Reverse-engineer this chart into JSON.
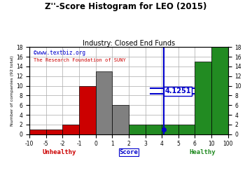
{
  "title": "Z''-Score Histogram for LEO (2015)",
  "subtitle": "Industry: Closed End Funds",
  "watermark1": "©www.textbiz.org",
  "watermark2": "The Research Foundation of SUNY",
  "xlabel_center": "Score",
  "xlabel_left": "Unhealthy",
  "xlabel_right": "Healthy",
  "ylabel": "Number of companies (92 total)",
  "zscore_value": 4.1251,
  "zscore_label": "4.1251",
  "bin_labels": [
    "-10",
    "-5",
    "-2",
    "-1",
    "0",
    "1",
    "2",
    "3",
    "4",
    "5",
    "6",
    "10",
    "100"
  ],
  "counts": [
    1,
    1,
    2,
    10,
    13,
    6,
    2,
    2,
    2,
    2,
    15,
    18
  ],
  "colors": [
    "#cc0000",
    "#cc0000",
    "#cc0000",
    "#cc0000",
    "#808080",
    "#808080",
    "#228b22",
    "#228b22",
    "#228b22",
    "#228b22",
    "#228b22",
    "#228b22"
  ],
  "bar_edge_color": "#000000",
  "grid_color": "#aaaaaa",
  "bg_color": "#ffffff",
  "title_color": "#000000",
  "subtitle_color": "#000000",
  "watermark1_color": "#0000cc",
  "watermark2_color": "#cc0000",
  "unhealthy_color": "#cc0000",
  "healthy_color": "#228b22",
  "score_color": "#0000cc",
  "zscore_line_color": "#0000cc",
  "yticks": [
    0,
    2,
    4,
    6,
    8,
    10,
    12,
    14,
    16,
    18
  ],
  "ylim": [
    0,
    18
  ]
}
